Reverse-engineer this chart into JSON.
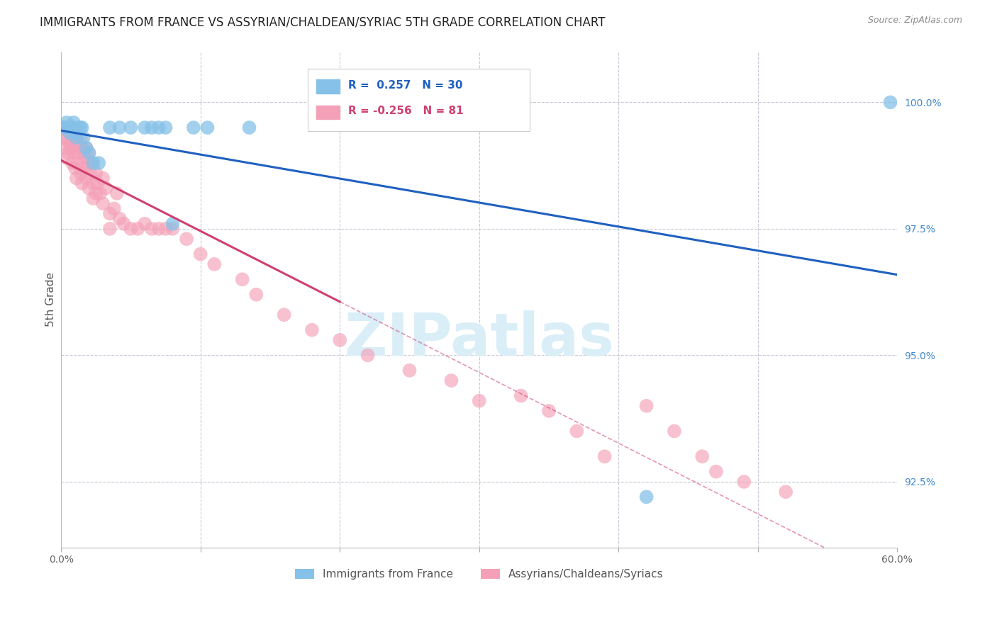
{
  "title": "IMMIGRANTS FROM FRANCE VS ASSYRIAN/CHALDEAN/SYRIAC 5TH GRADE CORRELATION CHART",
  "source": "Source: ZipAtlas.com",
  "ylabel": "5th Grade",
  "right_ytick_labels": [
    "92.5%",
    "95.0%",
    "97.5%",
    "100.0%"
  ],
  "right_yticks": [
    92.5,
    95.0,
    97.5,
    100.0
  ],
  "xmin": 0.0,
  "xmax": 60.0,
  "ymin": 91.2,
  "ymax": 101.0,
  "blue_R": 0.257,
  "blue_N": 30,
  "pink_R": -0.256,
  "pink_N": 81,
  "blue_color": "#85c1e8",
  "pink_color": "#f4a0b8",
  "trend_blue": "#2060c0",
  "trend_pink": "#d04070",
  "watermark": "ZIPatlas",
  "watermark_color": "#daeef8",
  "legend_label_blue": "Immigrants from France",
  "legend_label_pink": "Assyrians/Chaldeans/Syriacs",
  "blue_scatter_x": [
    0.2,
    0.4,
    0.5,
    0.6,
    0.7,
    0.8,
    0.9,
    1.0,
    1.1,
    1.2,
    1.4,
    1.5,
    1.6,
    1.8,
    2.0,
    2.3,
    2.7,
    3.5,
    4.2,
    5.0,
    6.0,
    6.5,
    7.0,
    7.5,
    8.0,
    9.5,
    10.5,
    13.5,
    42.0,
    59.5
  ],
  "blue_scatter_y": [
    99.5,
    99.6,
    99.5,
    99.4,
    99.5,
    99.5,
    99.6,
    99.4,
    99.3,
    99.5,
    99.5,
    99.5,
    99.3,
    99.1,
    99.0,
    98.8,
    98.8,
    99.5,
    99.5,
    99.5,
    99.5,
    99.5,
    99.5,
    99.5,
    97.6,
    99.5,
    99.5,
    99.5,
    92.2,
    100.0
  ],
  "pink_scatter_x": [
    0.1,
    0.2,
    0.3,
    0.4,
    0.4,
    0.5,
    0.5,
    0.6,
    0.6,
    0.7,
    0.7,
    0.8,
    0.8,
    0.9,
    0.9,
    1.0,
    1.0,
    1.0,
    1.1,
    1.1,
    1.2,
    1.2,
    1.3,
    1.4,
    1.4,
    1.5,
    1.5,
    1.6,
    1.6,
    1.7,
    1.8,
    1.8,
    1.9,
    2.0,
    2.0,
    2.1,
    2.2,
    2.3,
    2.3,
    2.5,
    2.5,
    2.6,
    2.8,
    3.0,
    3.0,
    3.2,
    3.5,
    3.5,
    3.8,
    4.0,
    4.2,
    4.5,
    5.0,
    5.5,
    6.0,
    6.5,
    7.0,
    7.5,
    8.0,
    9.0,
    10.0,
    11.0,
    13.0,
    14.0,
    16.0,
    18.0,
    20.0,
    22.0,
    25.0,
    28.0,
    30.0,
    33.0,
    35.0,
    37.0,
    39.0,
    42.0,
    44.0,
    46.0,
    47.0,
    49.0,
    52.0
  ],
  "pink_scatter_y": [
    99.5,
    99.3,
    99.1,
    99.5,
    98.9,
    99.3,
    99.0,
    99.5,
    99.2,
    99.4,
    99.1,
    99.3,
    98.8,
    99.5,
    99.0,
    99.4,
    99.1,
    98.7,
    99.3,
    98.5,
    99.2,
    98.8,
    99.0,
    99.3,
    98.6,
    99.1,
    98.4,
    99.0,
    98.7,
    98.9,
    99.1,
    98.5,
    98.8,
    99.0,
    98.3,
    98.6,
    98.8,
    98.4,
    98.1,
    98.6,
    98.2,
    98.4,
    98.2,
    98.5,
    98.0,
    98.3,
    97.8,
    97.5,
    97.9,
    98.2,
    97.7,
    97.6,
    97.5,
    97.5,
    97.6,
    97.5,
    97.5,
    97.5,
    97.5,
    97.3,
    97.0,
    96.8,
    96.5,
    96.2,
    95.8,
    95.5,
    95.3,
    95.0,
    94.7,
    94.5,
    94.1,
    94.2,
    93.9,
    93.5,
    93.0,
    94.0,
    93.5,
    93.0,
    92.7,
    92.5,
    92.3
  ]
}
